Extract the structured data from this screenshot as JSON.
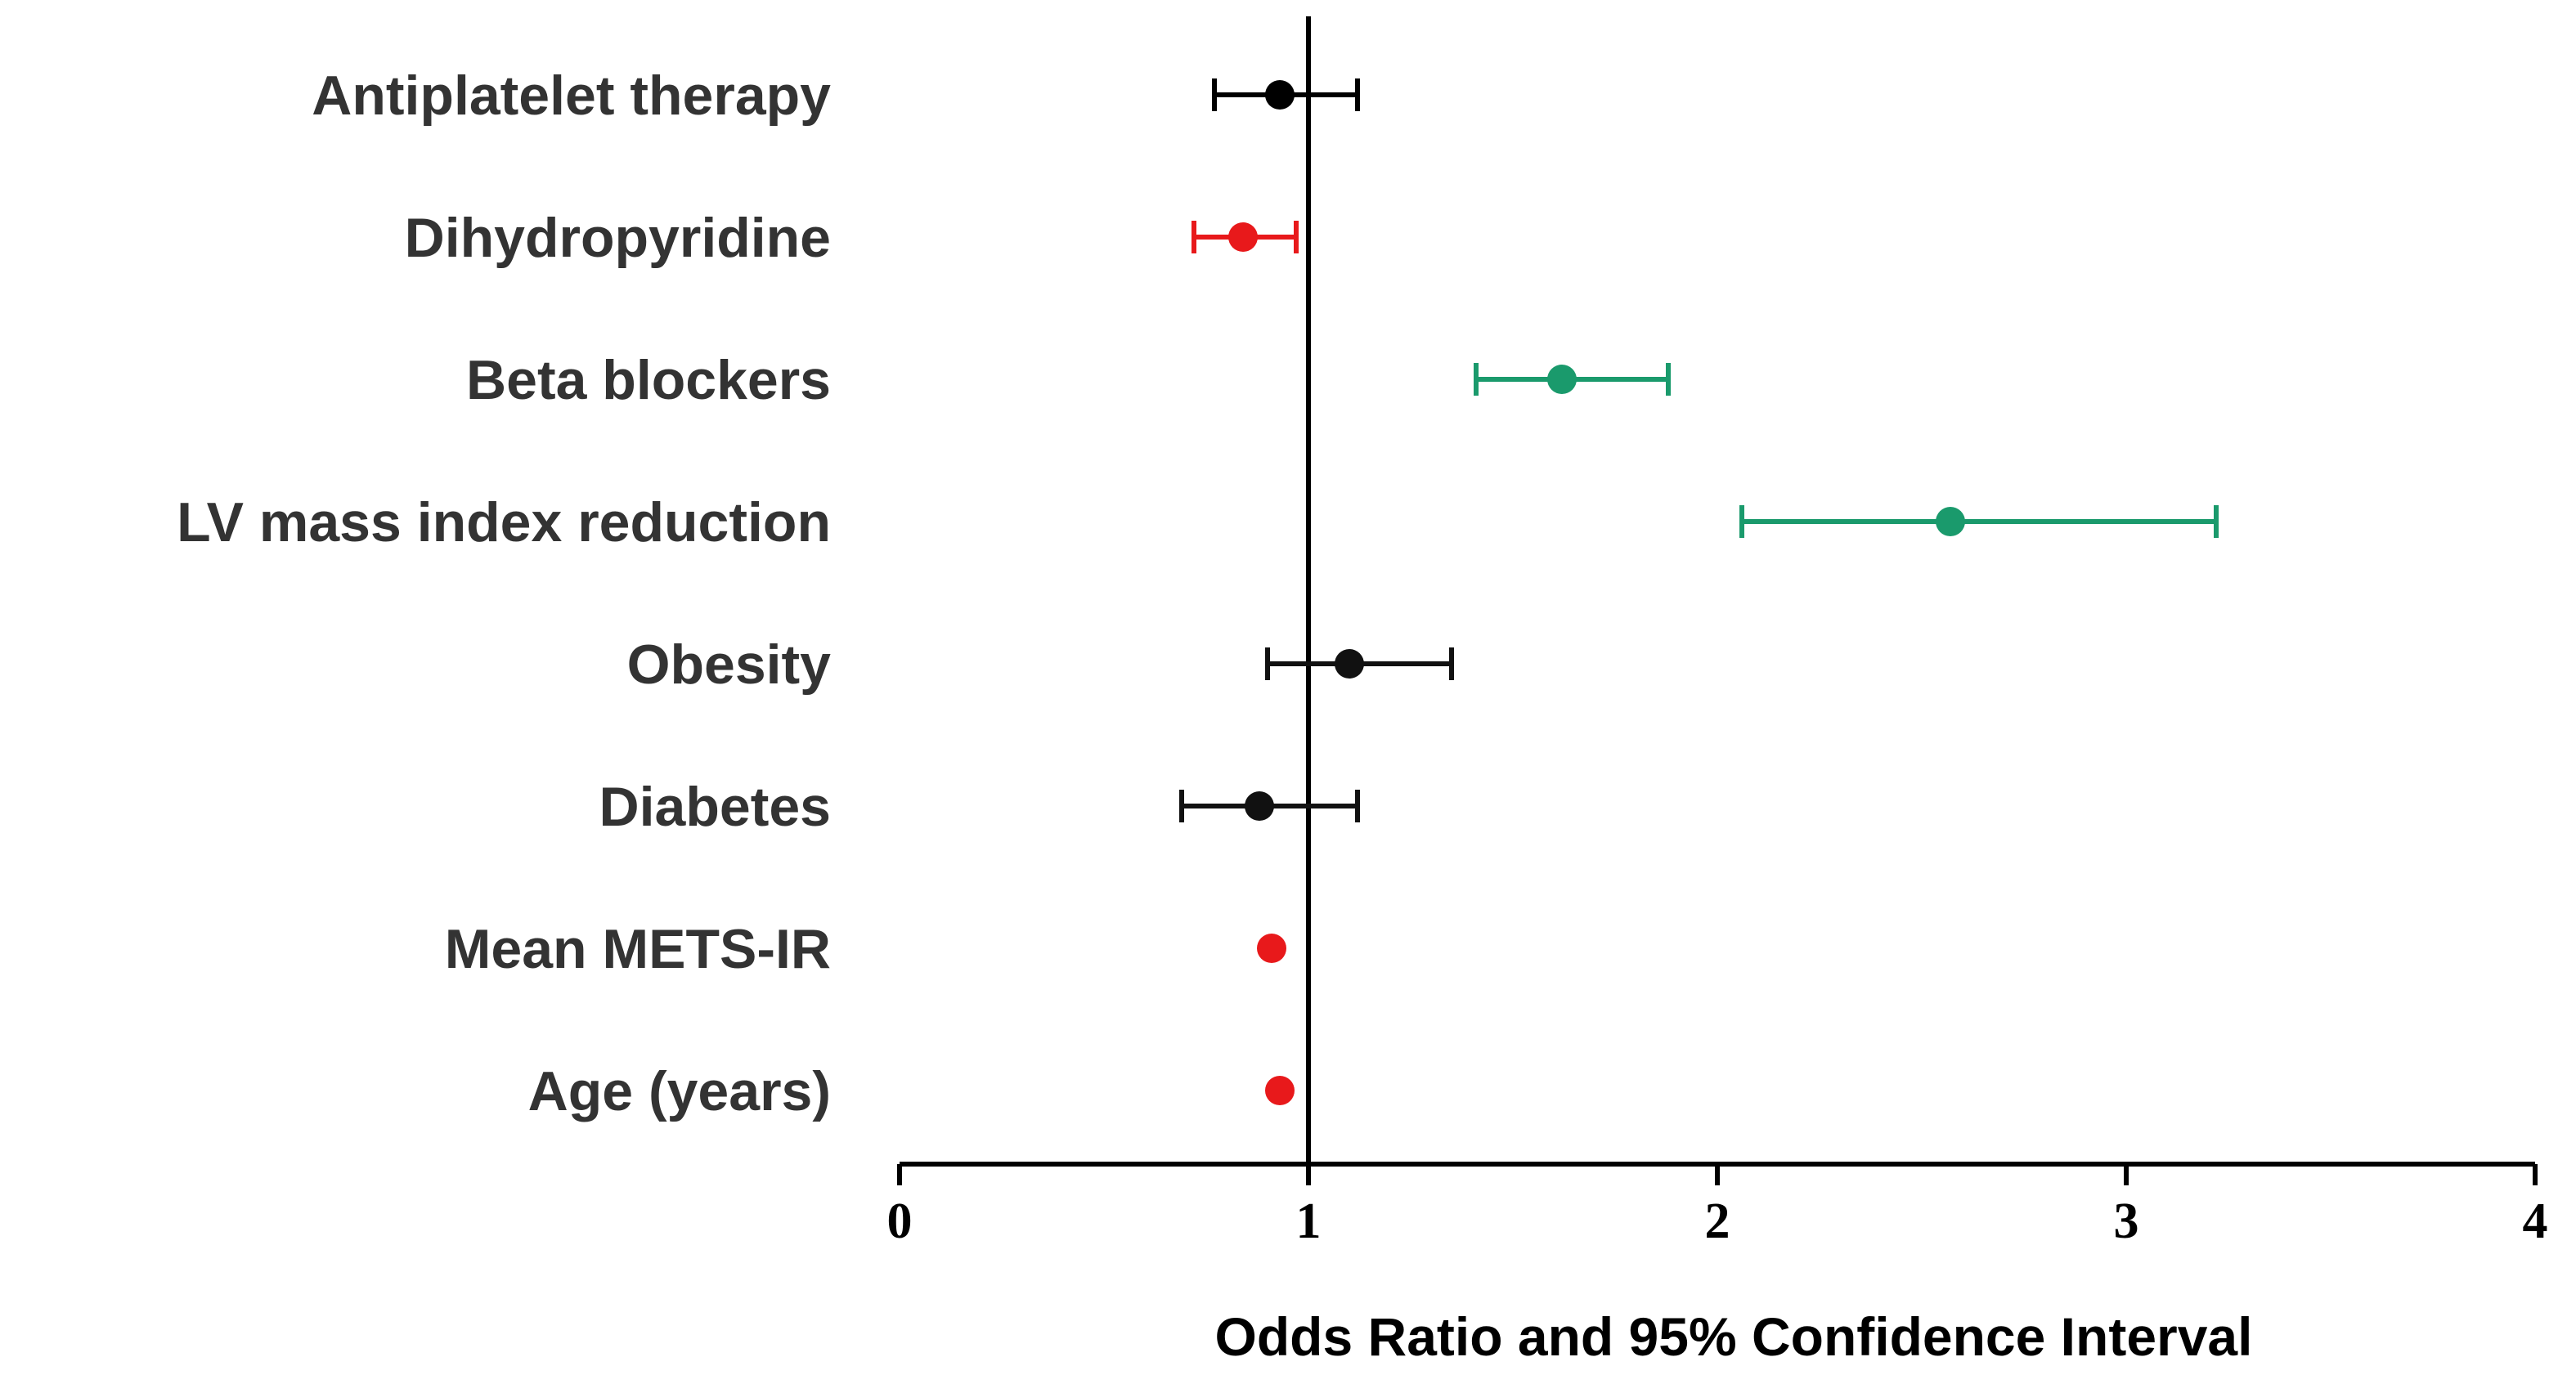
{
  "chart_data": {
    "type": "forest",
    "title": "",
    "xlabel": "Odds Ratio and 95% Confidence Interval",
    "ylabel": "",
    "xlim": [
      0,
      4
    ],
    "xticks": [
      0,
      1,
      2,
      3,
      4
    ],
    "reference_line": 1,
    "grid": false,
    "legend": "none",
    "rows": [
      {
        "label": "Antiplatelet therapy",
        "or": 0.93,
        "ci_low": 0.77,
        "ci_high": 1.12,
        "color": "#000000"
      },
      {
        "label": "Dihydropyridine",
        "or": 0.84,
        "ci_low": 0.72,
        "ci_high": 0.97,
        "color": "#e8191b"
      },
      {
        "label": "Beta blockers",
        "or": 1.62,
        "ci_low": 1.41,
        "ci_high": 1.88,
        "color": "#1a9a6c"
      },
      {
        "label": "LV mass index reduction",
        "or": 2.57,
        "ci_low": 2.06,
        "ci_high": 3.22,
        "color": "#1a9a6c"
      },
      {
        "label": "Obesity",
        "or": 1.1,
        "ci_low": 0.9,
        "ci_high": 1.35,
        "color": "#111111"
      },
      {
        "label": "Diabetes",
        "or": 0.88,
        "ci_low": 0.69,
        "ci_high": 1.12,
        "color": "#111111"
      },
      {
        "label": "Mean METS-IR",
        "or": 0.91,
        "ci_low": null,
        "ci_high": null,
        "color": "#e8191b"
      },
      {
        "label": "Age (years)",
        "or": 0.93,
        "ci_low": null,
        "ci_high": null,
        "color": "#e8191b"
      }
    ]
  }
}
